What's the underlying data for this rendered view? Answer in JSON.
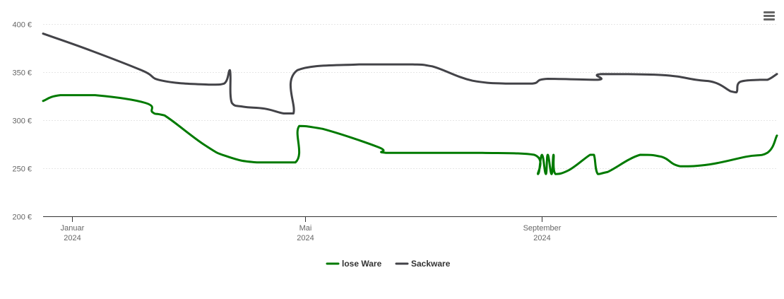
{
  "chart_data": {
    "type": "line",
    "title": "",
    "xlabel": "",
    "ylabel": "",
    "ylim": [
      200,
      400
    ],
    "y_ticks": [
      {
        "value": 200,
        "label": "200 €"
      },
      {
        "value": 250,
        "label": "250 €"
      },
      {
        "value": 300,
        "label": "300 €"
      },
      {
        "value": 350,
        "label": "350 €"
      },
      {
        "value": 400,
        "label": "400 €"
      }
    ],
    "xlim": [
      "2023-12-17",
      "2025-01-01"
    ],
    "x_ticks": [
      {
        "date": "2024-01-01",
        "month": "Januar",
        "year": "2024"
      },
      {
        "date": "2024-05-01",
        "month": "Mai",
        "year": "2024"
      },
      {
        "date": "2024-09-01",
        "month": "September",
        "year": "2024"
      }
    ],
    "grid": true,
    "legend_position": "bottom-center",
    "series": [
      {
        "name": "lose Ware",
        "color": "#007a00",
        "points": [
          [
            "2023-12-17",
            320
          ],
          [
            "2023-12-26",
            326
          ],
          [
            "2024-01-13",
            326
          ],
          [
            "2024-02-08",
            318
          ],
          [
            "2024-02-12",
            308
          ],
          [
            "2024-02-18",
            305
          ],
          [
            "2024-03-10",
            274
          ],
          [
            "2024-03-22",
            262
          ],
          [
            "2024-04-06",
            256
          ],
          [
            "2024-04-26",
            256
          ],
          [
            "2024-04-28",
            294
          ],
          [
            "2024-05-10",
            291
          ],
          [
            "2024-06-08",
            272
          ],
          [
            "2024-06-12",
            266
          ],
          [
            "2024-07-09",
            266
          ],
          [
            "2024-08-01",
            266
          ],
          [
            "2024-08-28",
            264
          ],
          [
            "2024-08-30",
            244
          ],
          [
            "2024-09-01",
            264
          ],
          [
            "2024-09-03",
            244
          ],
          [
            "2024-09-04",
            264
          ],
          [
            "2024-09-06",
            244
          ],
          [
            "2024-09-07",
            264
          ],
          [
            "2024-09-08",
            244
          ],
          [
            "2024-09-15",
            248
          ],
          [
            "2024-09-26",
            264
          ],
          [
            "2024-09-28",
            264
          ],
          [
            "2024-09-30",
            244
          ],
          [
            "2024-10-05",
            246
          ],
          [
            "2024-10-22",
            264
          ],
          [
            "2024-11-02",
            262
          ],
          [
            "2024-11-12",
            252
          ],
          [
            "2024-11-27",
            254
          ],
          [
            "2024-12-16",
            262
          ],
          [
            "2024-12-27",
            266
          ],
          [
            "2025-01-01",
            284
          ]
        ]
      },
      {
        "name": "Sackware",
        "color": "#434348",
        "points": [
          [
            "2023-12-17",
            390
          ],
          [
            "2024-01-10",
            373
          ],
          [
            "2024-02-06",
            352
          ],
          [
            "2024-02-17",
            341
          ],
          [
            "2024-03-12",
            337
          ],
          [
            "2024-03-20",
            338
          ],
          [
            "2024-03-23",
            352
          ],
          [
            "2024-03-24",
            318
          ],
          [
            "2024-03-30",
            314
          ],
          [
            "2024-04-10",
            312
          ],
          [
            "2024-04-20",
            307
          ],
          [
            "2024-04-25",
            307
          ],
          [
            "2024-04-27",
            352
          ],
          [
            "2024-05-29",
            358
          ],
          [
            "2024-06-26",
            358
          ],
          [
            "2024-07-06",
            356
          ],
          [
            "2024-07-27",
            341
          ],
          [
            "2024-08-14",
            338
          ],
          [
            "2024-08-27",
            338
          ],
          [
            "2024-09-04",
            343
          ],
          [
            "2024-09-30",
            342
          ],
          [
            "2024-10-02",
            348
          ],
          [
            "2024-11-02",
            347
          ],
          [
            "2024-11-20",
            342
          ],
          [
            "2024-11-30",
            339
          ],
          [
            "2024-12-08",
            330
          ],
          [
            "2024-12-11",
            329
          ],
          [
            "2024-12-13",
            340
          ],
          [
            "2024-12-23",
            342
          ],
          [
            "2024-12-27",
            342
          ],
          [
            "2025-01-01",
            348
          ]
        ]
      }
    ]
  }
}
